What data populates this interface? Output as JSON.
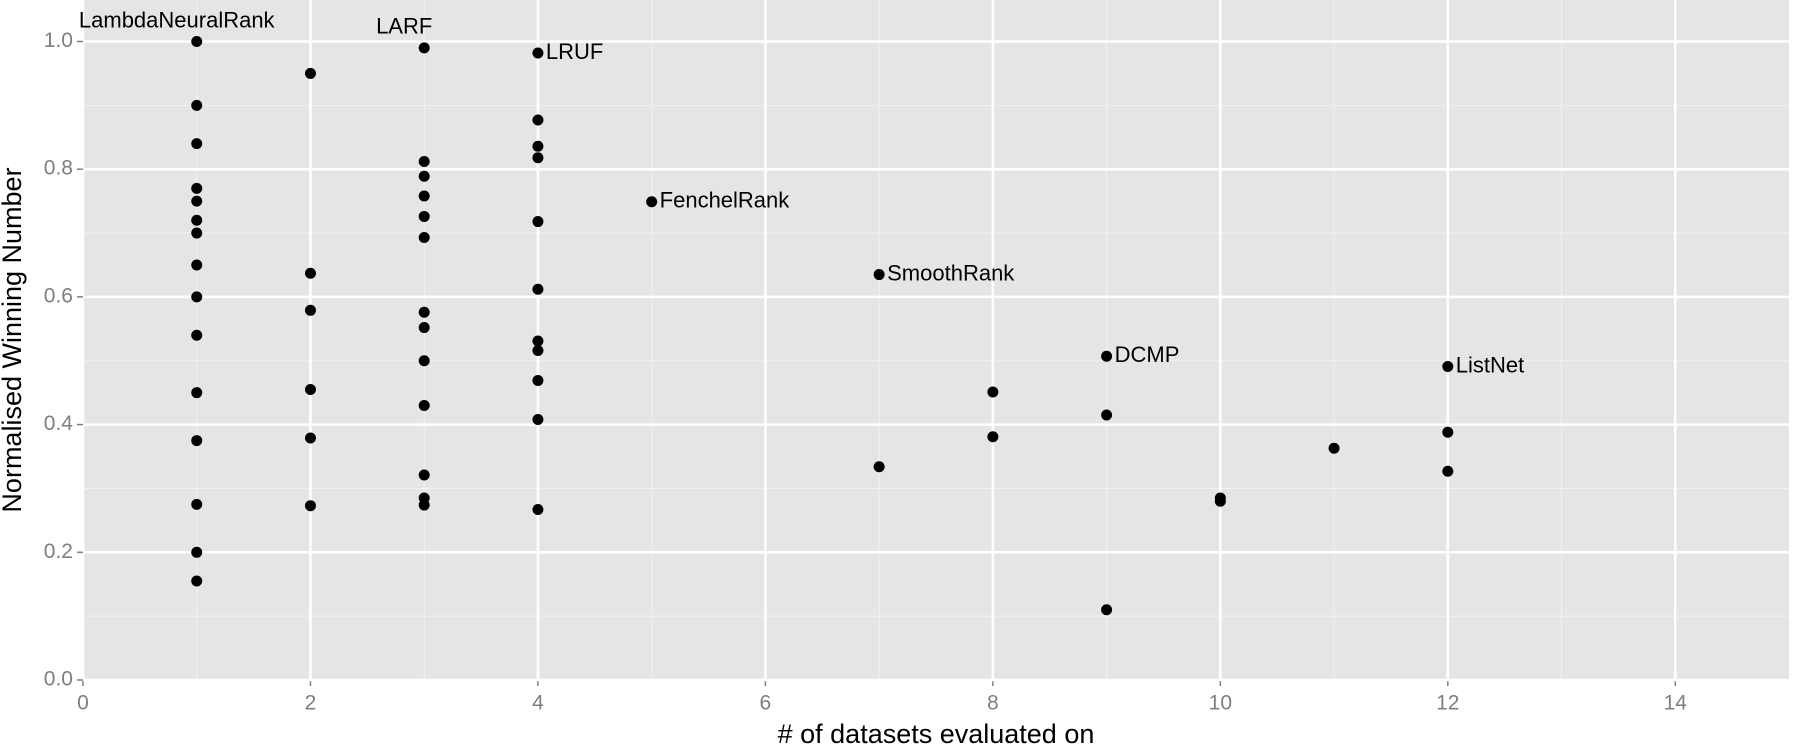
{
  "chart_data": {
    "type": "scatter",
    "x_label": "# of datasets evaluated on",
    "y_label": "Normalised Winning Number",
    "xlim": [
      0,
      15
    ],
    "ylim": [
      0,
      1.065
    ],
    "xticks": [
      0,
      2,
      4,
      6,
      8,
      10,
      12,
      14
    ],
    "yticks": [
      {
        "value": 0,
        "label": "0.0"
      },
      0.2,
      0.4,
      0.6,
      0.8,
      {
        "value": 1,
        "label": "1.0"
      }
    ],
    "x_minor_ticks": [
      1,
      3,
      5,
      7,
      9,
      11,
      13
    ],
    "y_minor_ticks": [
      0.1,
      0.3,
      0.5,
      0.7,
      0.9
    ],
    "grid": true,
    "color": "#000000",
    "x": [
      1,
      1,
      1,
      1,
      1,
      1,
      1,
      1,
      1,
      1,
      1,
      1,
      1,
      1,
      1,
      2,
      2,
      2,
      2,
      2,
      2,
      3,
      3,
      3,
      3,
      3,
      3,
      3,
      3,
      3,
      3,
      3,
      3,
      3,
      4,
      4,
      4,
      4,
      4,
      4,
      4,
      4,
      4,
      4,
      4,
      5,
      7,
      7,
      8,
      8,
      9,
      9,
      9,
      10,
      10,
      11,
      12,
      12,
      12
    ],
    "values": [
      1.0,
      0.9,
      0.84,
      0.77,
      0.75,
      0.72,
      0.7,
      0.65,
      0.6,
      0.54,
      0.45,
      0.375,
      0.275,
      0.2,
      0.155,
      0.95,
      0.637,
      0.579,
      0.455,
      0.379,
      0.273,
      0.99,
      0.812,
      0.789,
      0.758,
      0.726,
      0.693,
      0.576,
      0.552,
      0.5,
      0.43,
      0.321,
      0.285,
      0.274,
      0.982,
      0.877,
      0.836,
      0.818,
      0.718,
      0.612,
      0.531,
      0.516,
      0.469,
      0.408,
      0.267,
      0.749,
      0.635,
      0.334,
      0.451,
      0.381,
      0.507,
      0.415,
      0.11,
      0.285,
      0.28,
      0.363,
      0.491,
      0.388,
      0.327
    ],
    "point_labels": [
      "LambdaNeuralRank",
      null,
      null,
      null,
      null,
      null,
      null,
      null,
      null,
      null,
      null,
      null,
      null,
      null,
      null,
      null,
      null,
      null,
      null,
      null,
      null,
      "LARF",
      null,
      null,
      null,
      null,
      null,
      null,
      null,
      null,
      null,
      null,
      null,
      null,
      "LRUF",
      null,
      null,
      null,
      null,
      null,
      null,
      null,
      null,
      null,
      null,
      "FenchelRank",
      "SmoothRank",
      null,
      null,
      null,
      "DCMP",
      null,
      null,
      null,
      null,
      null,
      "ListNet",
      null,
      null
    ]
  }
}
